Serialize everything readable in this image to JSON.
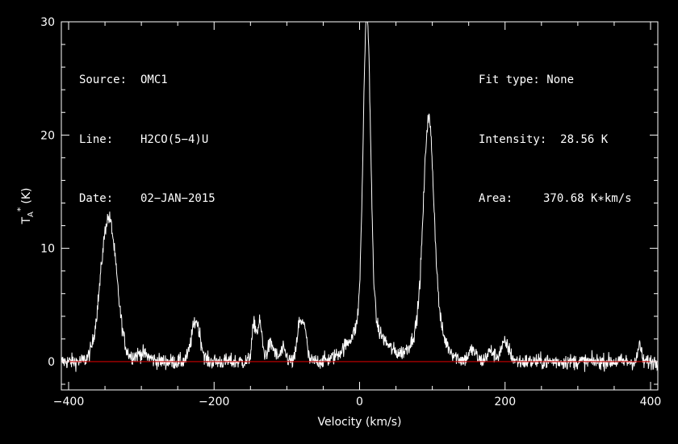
{
  "info": {
    "source_label": "Source:",
    "source_value": "OMC1",
    "line_label": "Line:",
    "line_value": "H2CO(5−4)U",
    "date_label": "Date:",
    "date_value": "02−JAN−2015",
    "fit_label": "Fit type:",
    "fit_value": "None",
    "intensity_label": "Intensity:",
    "intensity_value": "28.56 K",
    "area_label": "Area:",
    "area_value": "370.68 K∗km/s"
  },
  "colors": {
    "background": "#000000",
    "foreground": "#ffffff",
    "baseline": "#cc0000"
  },
  "chart_data": {
    "type": "line",
    "title": "",
    "xlabel": "Velocity (km/s)",
    "ylabel": "T_A* (K)",
    "ylabel_main": "T",
    "ylabel_sub": "A",
    "ylabel_sup": "*",
    "ylabel_unit": "(K)",
    "xlim": [
      -410,
      410
    ],
    "ylim": [
      -2.5,
      30
    ],
    "xticks": [
      -400,
      -200,
      0,
      200,
      400
    ],
    "xtick_labels": [
      "−400",
      "−200",
      "0",
      "200",
      "400"
    ],
    "yticks": [
      0,
      10,
      20,
      30
    ],
    "ytick_labels": [
      "0",
      "10",
      "20",
      "30"
    ],
    "grid": false,
    "baseline_y": 0,
    "noise_rms": 0.35,
    "peaks": [
      {
        "x": -345,
        "y": 12.7,
        "width": 11
      },
      {
        "x": -300,
        "y": 0.7,
        "width": 10
      },
      {
        "x": -225,
        "y": 3.6,
        "width": 6
      },
      {
        "x": -145,
        "y": 3.2,
        "width": 3
      },
      {
        "x": -137,
        "y": 3.3,
        "width": 3
      },
      {
        "x": -122,
        "y": 1.5,
        "width": 5
      },
      {
        "x": -105,
        "y": 1.0,
        "width": 4
      },
      {
        "x": -83,
        "y": 3.2,
        "width": 3
      },
      {
        "x": -76,
        "y": 3.3,
        "width": 3
      },
      {
        "x": 10,
        "y": 27.5,
        "width": 5
      },
      {
        "x": 10,
        "y": 3.5,
        "width": 22
      },
      {
        "x": 95,
        "y": 17.5,
        "width": 7
      },
      {
        "x": 95,
        "y": 4.0,
        "width": 18
      },
      {
        "x": 155,
        "y": 1.0,
        "width": 5
      },
      {
        "x": 180,
        "y": 0.9,
        "width": 5
      },
      {
        "x": 200,
        "y": 1.6,
        "width": 6
      },
      {
        "x": 385,
        "y": 1.6,
        "width": 2
      }
    ]
  }
}
